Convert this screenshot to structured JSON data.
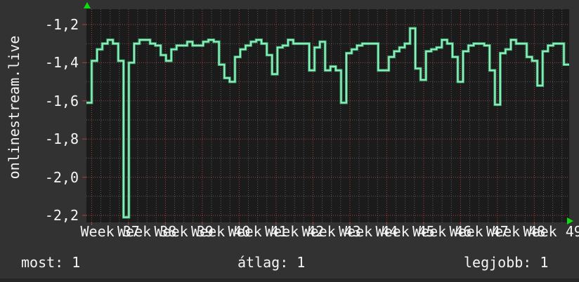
{
  "chart": {
    "vertical_axis_title": "onlinestream.live",
    "y_tick_labels": [
      "-1,2",
      "-1,4",
      "-1,6",
      "-1,8",
      "-2,0",
      "-2,2"
    ],
    "week_labels": [
      "Week 37",
      "Week 38",
      "Week 39",
      "Week 40",
      "Week 41",
      "Week 42",
      "Week 43",
      "Week 44",
      "Week 45",
      "Week 46",
      "Week 47",
      "Week 48",
      "Week 49"
    ]
  },
  "stats": {
    "most": "most: 1",
    "atlag": "átlag: 1",
    "legjobb": "legjobb: 1"
  },
  "colors": {
    "page_background": "#323232",
    "plot_background": "#1b1b1b",
    "grid_minor": "#585858",
    "grid_major": "#a64040",
    "line_core": "#9df0bf",
    "line_edge": "#38ac74",
    "axis_arrow": "#0ddc0d",
    "text": "#f4f4f4"
  },
  "chart_data": {
    "type": "line",
    "line_style": "step",
    "title": "",
    "ylabel": "onlinestream.live",
    "xlabel_unit": "week",
    "x_week_range": [
      37,
      49
    ],
    "x_points_per_week": 7,
    "ylim": [
      -2.24,
      -1.12
    ],
    "y_ticks": [
      -1.2,
      -1.4,
      -1.6,
      -1.8,
      -2.0,
      -2.2
    ],
    "grid": "dotted, red major every 0.2 and every week, gray minor every 0.1 and quarter-week",
    "legend_position": "none",
    "summary": {
      "most": 1,
      "atlag": 1,
      "legjobb": 1
    },
    "series": [
      {
        "name": "onlinestream.live",
        "x_unit": "day",
        "values": [
          -1.61,
          -1.39,
          -1.33,
          -1.3,
          -1.28,
          -1.3,
          -1.39,
          -2.21,
          -1.4,
          -1.3,
          -1.28,
          -1.28,
          -1.3,
          -1.31,
          -1.36,
          -1.39,
          -1.33,
          -1.31,
          -1.31,
          -1.29,
          -1.31,
          -1.31,
          -1.29,
          -1.28,
          -1.29,
          -1.41,
          -1.48,
          -1.5,
          -1.37,
          -1.33,
          -1.31,
          -1.29,
          -1.28,
          -1.3,
          -1.36,
          -1.46,
          -1.32,
          -1.31,
          -1.28,
          -1.3,
          -1.3,
          -1.3,
          -1.44,
          -1.32,
          -1.29,
          -1.44,
          -1.42,
          -1.44,
          -1.61,
          -1.35,
          -1.33,
          -1.31,
          -1.3,
          -1.3,
          -1.3,
          -1.44,
          -1.44,
          -1.37,
          -1.34,
          -1.32,
          -1.3,
          -1.22,
          -1.43,
          -1.49,
          -1.34,
          -1.33,
          -1.32,
          -1.28,
          -1.3,
          -1.37,
          -1.5,
          -1.34,
          -1.31,
          -1.3,
          -1.3,
          -1.31,
          -1.44,
          -1.62,
          -1.35,
          -1.33,
          -1.28,
          -1.3,
          -1.3,
          -1.37,
          -1.39,
          -1.52,
          -1.34,
          -1.31,
          -1.3,
          -1.3,
          -1.41
        ]
      }
    ]
  }
}
